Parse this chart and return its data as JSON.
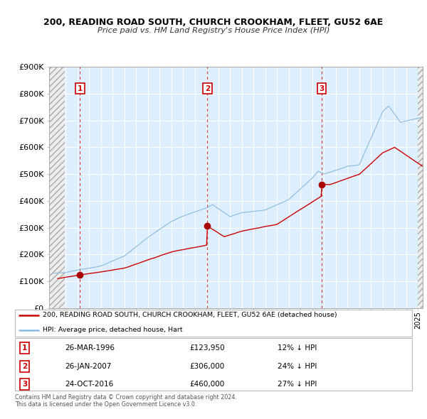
{
  "title_line1": "200, READING ROAD SOUTH, CHURCH CROOKHAM, FLEET, GU52 6AE",
  "title_line2": "Price paid vs. HM Land Registry's House Price Index (HPI)",
  "ylim": [
    0,
    900000
  ],
  "yticks": [
    0,
    100000,
    200000,
    300000,
    400000,
    500000,
    600000,
    700000,
    800000,
    900000
  ],
  "ytick_labels": [
    "£0",
    "£100K",
    "£200K",
    "£300K",
    "£400K",
    "£500K",
    "£600K",
    "£700K",
    "£800K",
    "£900K"
  ],
  "xlim_start": 1993.6,
  "xlim_end": 2025.4,
  "sales": [
    {
      "num": 1,
      "date": "26-MAR-1996",
      "year": 1996.23,
      "price": 123950,
      "pct": "12%",
      "label": "26-MAR-1996",
      "price_str": "£123,950"
    },
    {
      "num": 2,
      "date": "26-JAN-2007",
      "year": 2007.07,
      "price": 306000,
      "pct": "24%",
      "label": "26-JAN-2007",
      "price_str": "£306,000"
    },
    {
      "num": 3,
      "date": "24-OCT-2016",
      "year": 2016.81,
      "price": 460000,
      "pct": "27%",
      "label": "24-OCT-2016",
      "price_str": "£460,000"
    }
  ],
  "legend_line1": "200, READING ROAD SOUTH, CHURCH CROOKHAM, FLEET, GU52 6AE (detached house)",
  "legend_line2": "HPI: Average price, detached house, Hart",
  "footnote": "Contains HM Land Registry data © Crown copyright and database right 2024.\nThis data is licensed under the Open Government Licence v3.0.",
  "plot_bg_color": "#ddeeff",
  "grid_color": "#ffffff",
  "red_line_color": "#cc0000",
  "blue_line_color": "#88bbdd",
  "sale_marker_color": "#aa0000",
  "dashed_vline_color": "#cc3333",
  "box_border_color": "#cc0000",
  "hatch_bg": "#e8e8e8"
}
